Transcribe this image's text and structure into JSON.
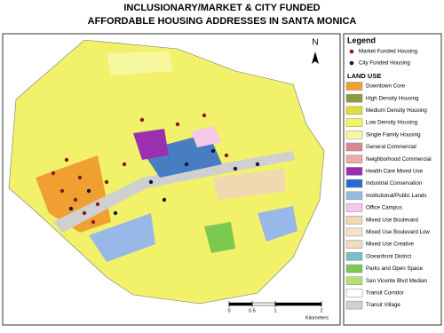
{
  "title": [
    "INCLUSIONARY/MARKET & CITY FUNDED",
    "AFFORDABLE HOUSING ADDRESSES IN SANTA MONICA"
  ],
  "legend": {
    "title": "Legend",
    "points": [
      {
        "label": "Market Funded Housing",
        "color": "#8b1a1a"
      },
      {
        "label": "City Funded Housing",
        "color": "#14143c"
      }
    ],
    "land_use_title": "LAND USE",
    "land_use": [
      {
        "label": "Downtown Core",
        "color": "#f0a030"
      },
      {
        "label": "High Density Housing",
        "color": "#8c9a3c"
      },
      {
        "label": "Medium Density Housing",
        "color": "#dede3c"
      },
      {
        "label": "Low Density Housing",
        "color": "#f5f55a"
      },
      {
        "label": "Single Family Housing",
        "color": "#f7f7a0"
      },
      {
        "label": "General Commercial",
        "color": "#d88a8a"
      },
      {
        "label": "Neighborhood Commercial",
        "color": "#f0a8a8"
      },
      {
        "label": "Health Care Mixed Use",
        "color": "#9a30b0"
      },
      {
        "label": "Industrial Conservation",
        "color": "#2a6ad0"
      },
      {
        "label": "Institutional/Public Lands",
        "color": "#98b8e8"
      },
      {
        "label": "Office Campus",
        "color": "#f5c8e8"
      },
      {
        "label": "Mixed Use Boulevard",
        "color": "#f0d8b0"
      },
      {
        "label": "Mixed Use Boulevard Low",
        "color": "#f5e4c4"
      },
      {
        "label": "Mixed Use Creative",
        "color": "#f0dcc0"
      },
      {
        "label": "Oceanfront District",
        "color": "#78c0c8"
      },
      {
        "label": "Parks and Open Space",
        "color": "#7cc850"
      },
      {
        "label": "San Vicente Blvd Median",
        "color": "#b8e070"
      },
      {
        "label": "Transit Corridor",
        "color": "#ffffff"
      },
      {
        "label": "Transit Village",
        "color": "#d0d0d0"
      }
    ]
  },
  "scale": {
    "ticks": [
      0,
      0.5,
      1,
      2
    ],
    "unit": "Kilometers"
  },
  "north": "N"
}
